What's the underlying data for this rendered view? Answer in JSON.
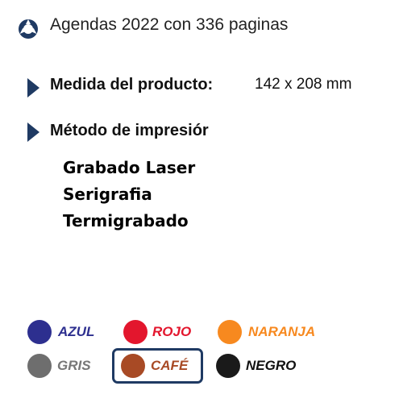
{
  "header": {
    "title": "Agendas 2022 con 336 paginas",
    "logo_icon": "blue-ring-logo-icon"
  },
  "specs": [
    {
      "label": "Medida del producto:",
      "value": "142 x 208 mm"
    },
    {
      "label": "Método de impresiór",
      "value": ""
    }
  ],
  "print_methods": [
    "Grabado Laser",
    "Serigrafia",
    "Termigrabado"
  ],
  "colors": [
    {
      "label": "AZUL",
      "swatch": "#2d2f8f",
      "text_color": "#2d2f8f",
      "selected": false
    },
    {
      "label": "ROJO",
      "swatch": "#e3162d",
      "text_color": "#e3162d",
      "selected": false
    },
    {
      "label": "NARANJA",
      "swatch": "#f7891f",
      "text_color": "#f7891f",
      "selected": false
    },
    {
      "label": "GRIS",
      "swatch": "#6e6e6e",
      "text_color": "#777777",
      "selected": false
    },
    {
      "label": "CAFÉ",
      "swatch": "#a84a25",
      "text_color": "#a84a25",
      "selected": true
    },
    {
      "label": "NEGRO",
      "swatch": "#1a1a1a",
      "text_color": "#111111",
      "selected": false
    }
  ],
  "theme": {
    "accent": "#1f3a63",
    "logo_blue": "#1f5fa8"
  }
}
